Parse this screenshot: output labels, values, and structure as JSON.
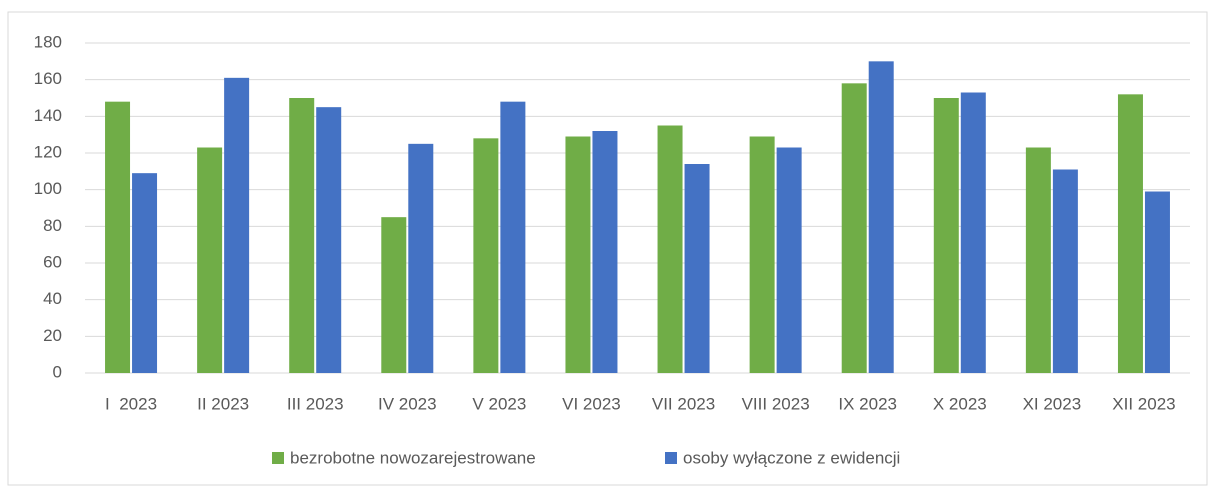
{
  "chart_data": {
    "type": "bar",
    "categories": [
      "I  2023",
      "II 2023",
      "III 2023",
      "IV 2023",
      "V 2023",
      "VI 2023",
      "VII 2023",
      "VIII 2023",
      "IX 2023",
      "X 2023",
      "XI 2023",
      "XII 2023"
    ],
    "series": [
      {
        "name": "bezrobotne nowozarejestrowane",
        "color": "#70ad47",
        "values": [
          148,
          123,
          150,
          85,
          128,
          129,
          135,
          129,
          158,
          150,
          123,
          152
        ]
      },
      {
        "name": "osoby wyłączone z ewidencji",
        "color": "#4472c4",
        "values": [
          109,
          161,
          145,
          125,
          148,
          132,
          114,
          123,
          170,
          153,
          111,
          99
        ]
      }
    ],
    "ylim": [
      0,
      180
    ],
    "yticks": [
      0,
      20,
      40,
      60,
      80,
      100,
      120,
      140,
      160,
      180
    ],
    "grid": true,
    "legend": "bottom"
  }
}
